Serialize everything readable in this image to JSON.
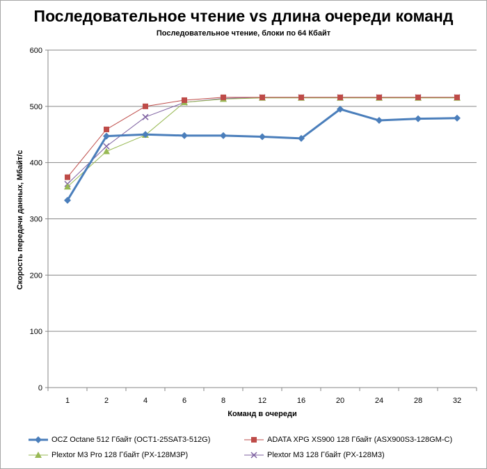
{
  "chart_data": {
    "type": "line",
    "title": "Последовательное чтение vs длина очереди команд",
    "subtitle": "Последовательное  чтение, блоки по 64 Кбайт",
    "xlabel": "Команд в очереди",
    "ylabel": "Скорость  передачи данных, Мбайт/с",
    "categories": [
      "1",
      "2",
      "4",
      "6",
      "8",
      "12",
      "16",
      "20",
      "24",
      "28",
      "32"
    ],
    "ylim": [
      0,
      600
    ],
    "yticks": [
      0,
      100,
      200,
      300,
      400,
      500,
      600
    ],
    "grid": "horizontal",
    "legend_position": "bottom",
    "series": [
      {
        "name": "OCZ Octane 512 Гбайт (OCT1-25SAT3-512G)",
        "color": "#4a7ebb",
        "marker": "diamond",
        "values": [
          333,
          447,
          450,
          448,
          448,
          446,
          443,
          495,
          475,
          478,
          479
        ]
      },
      {
        "name": "ADATA  XPG XS900 128 Гбайт (ASX900S3-128GM-C)",
        "color": "#be4b48",
        "marker": "square",
        "values": [
          374,
          459,
          500,
          511,
          516,
          516,
          516,
          516,
          516,
          516,
          516
        ]
      },
      {
        "name": "Plextor M3 Pro 128 Гбайт (PX-128M3P)",
        "color": "#98b954",
        "marker": "triangle",
        "values": [
          357,
          420,
          449,
          507,
          513,
          515,
          515,
          515,
          515,
          515,
          515
        ]
      },
      {
        "name": "Plextor M3 128 Гбайт (PX-128M3)",
        "color": "#7d60a0",
        "marker": "x",
        "values": [
          362,
          429,
          481,
          507,
          514,
          516,
          516,
          516,
          516,
          516,
          516
        ]
      }
    ]
  }
}
